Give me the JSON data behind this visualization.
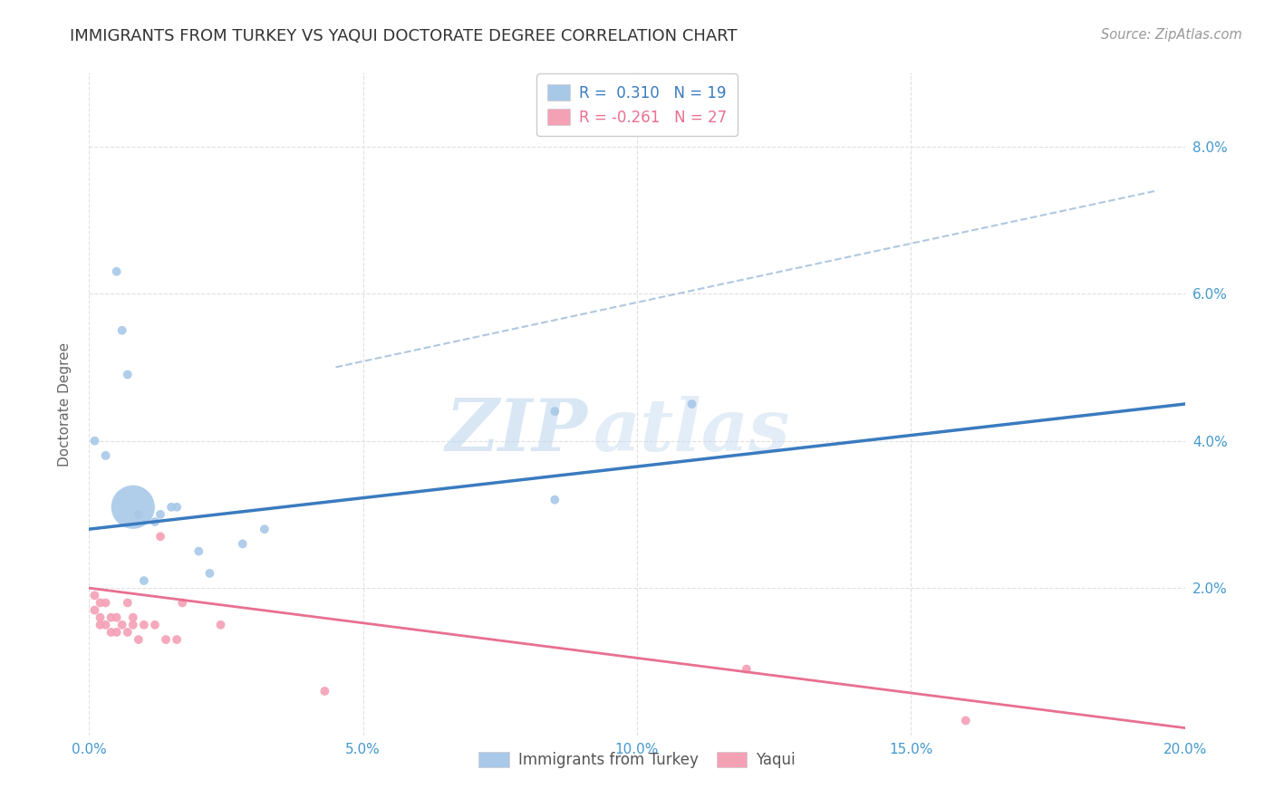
{
  "title": "IMMIGRANTS FROM TURKEY VS YAQUI DOCTORATE DEGREE CORRELATION CHART",
  "source": "Source: ZipAtlas.com",
  "ylabel_label": "Doctorate Degree",
  "xlim": [
    0.0,
    0.2
  ],
  "ylim": [
    0.0,
    0.09
  ],
  "xticks": [
    0.0,
    0.05,
    0.1,
    0.15,
    0.2
  ],
  "xtick_labels": [
    "0.0%",
    "5.0%",
    "10.0%",
    "15.0%",
    "20.0%"
  ],
  "yticks": [
    0.0,
    0.02,
    0.04,
    0.06,
    0.08
  ],
  "ytick_labels": [
    "",
    "2.0%",
    "4.0%",
    "6.0%",
    "8.0%"
  ],
  "blue_R": 0.31,
  "blue_N": 19,
  "pink_R": -0.261,
  "pink_N": 27,
  "blue_color": "#a8c8e8",
  "pink_color": "#f4a0b5",
  "blue_line_color": "#3a7bbf",
  "pink_line_color": "#e87090",
  "dashed_line_color": "#b0c8e0",
  "background_color": "#ffffff",
  "grid_color": "#dddddd",
  "blue_points_x": [
    0.001,
    0.003,
    0.005,
    0.006,
    0.007,
    0.008,
    0.009,
    0.01,
    0.012,
    0.013,
    0.015,
    0.016,
    0.02,
    0.022,
    0.028,
    0.032,
    0.085,
    0.085,
    0.11
  ],
  "blue_points_y": [
    0.04,
    0.038,
    0.063,
    0.055,
    0.049,
    0.031,
    0.03,
    0.021,
    0.029,
    0.03,
    0.031,
    0.031,
    0.025,
    0.022,
    0.026,
    0.028,
    0.044,
    0.032,
    0.045
  ],
  "blue_sizes": [
    50,
    50,
    50,
    50,
    50,
    1200,
    50,
    50,
    50,
    50,
    50,
    50,
    50,
    50,
    50,
    50,
    50,
    50,
    50
  ],
  "pink_points_x": [
    0.001,
    0.001,
    0.002,
    0.002,
    0.002,
    0.003,
    0.003,
    0.004,
    0.004,
    0.005,
    0.005,
    0.006,
    0.007,
    0.007,
    0.008,
    0.008,
    0.009,
    0.01,
    0.012,
    0.013,
    0.014,
    0.016,
    0.017,
    0.024,
    0.043,
    0.12,
    0.16
  ],
  "pink_points_y": [
    0.019,
    0.017,
    0.016,
    0.018,
    0.015,
    0.018,
    0.015,
    0.016,
    0.014,
    0.016,
    0.014,
    0.015,
    0.018,
    0.014,
    0.016,
    0.015,
    0.013,
    0.015,
    0.015,
    0.027,
    0.013,
    0.013,
    0.018,
    0.015,
    0.006,
    0.009,
    0.002
  ],
  "pink_sizes": [
    50,
    50,
    50,
    50,
    50,
    50,
    50,
    50,
    50,
    50,
    50,
    50,
    50,
    50,
    50,
    50,
    50,
    50,
    50,
    50,
    50,
    50,
    50,
    50,
    50,
    50,
    50
  ],
  "blue_line_x": [
    0.0,
    0.2
  ],
  "blue_line_y": [
    0.028,
    0.045
  ],
  "pink_line_x": [
    0.0,
    0.2
  ],
  "pink_line_y": [
    0.02,
    0.001
  ],
  "dashed_line_x": [
    0.045,
    0.195
  ],
  "dashed_line_y": [
    0.05,
    0.074
  ],
  "watermark_zip": "ZIP",
  "watermark_atlas": "atlas",
  "legend_blue_label": "R =  0.310   N = 19",
  "legend_pink_label": "R = -0.261   N = 27",
  "bottom_legend_blue": "Immigrants from Turkey",
  "bottom_legend_pink": "Yaqui"
}
